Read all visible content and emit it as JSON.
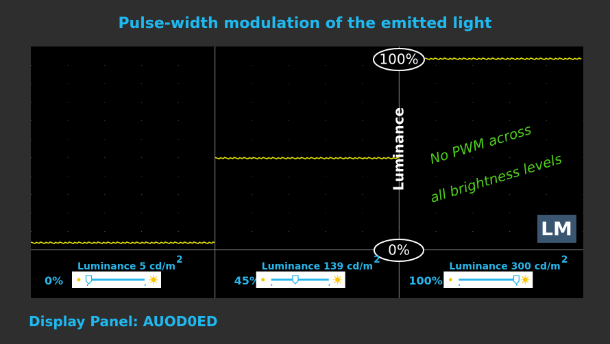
{
  "title": "Pulse-width modulation of the emitted light",
  "footer": "Display Panel: AUOD0ED",
  "colors": {
    "accent": "#1fb8ef",
    "trace": "#e6e600",
    "note": "#4fcf1c",
    "background": "#2e2e2e"
  },
  "chart_data": {
    "type": "line",
    "ylabel": "Luminance",
    "y_markers": [
      "100%",
      "0%"
    ],
    "ylim": [
      0,
      100
    ],
    "series": [
      {
        "brightness": "0%",
        "luminance_label": "Luminance 5 cd/m",
        "superscript": "2",
        "level": 0,
        "slider": 0.03
      },
      {
        "brightness": "45%",
        "luminance_label": "Luminance 139 cd/m",
        "superscript": "2",
        "level": 46,
        "slider": 0.42
      },
      {
        "brightness": "100%",
        "luminance_label": "Luminance 300 cd/m",
        "superscript": "2",
        "level": 100,
        "slider": 1.0
      }
    ],
    "annotation": [
      "No PWM across",
      "all brightness levels"
    ],
    "logo": "LM",
    "icons": [
      "sun-dim-icon",
      "sun-bright-icon"
    ]
  }
}
